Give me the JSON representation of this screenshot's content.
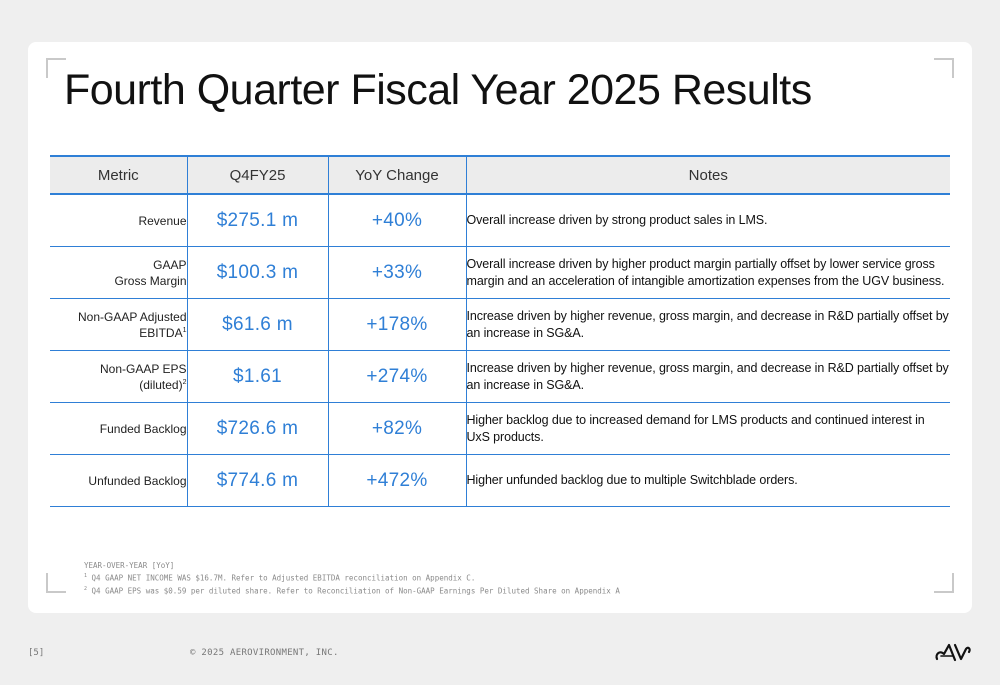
{
  "slide": {
    "title": "Fourth Quarter Fiscal Year 2025 Results",
    "page_number": "[5]",
    "copyright": "© 2025 AEROVIRONMENT, INC.",
    "logo_text": "AV",
    "accent_color": "#2f7fd6"
  },
  "table": {
    "headers": [
      "Metric",
      "Q4FY25",
      "YoY Change",
      "Notes"
    ],
    "rows": [
      {
        "metric_lines": [
          "Revenue"
        ],
        "metric_sup": "",
        "value": "$275.1 m",
        "yoy": "+40%",
        "note": "Overall increase driven by strong product sales in LMS."
      },
      {
        "metric_lines": [
          "GAAP",
          "Gross Margin"
        ],
        "metric_sup": "",
        "value": "$100.3 m",
        "yoy": "+33%",
        "note": "Overall increase driven by higher product margin partially offset by lower service gross margin and an acceleration of intangible amortization expenses from the UGV business."
      },
      {
        "metric_lines": [
          "Non-GAAP Adjusted",
          "EBITDA"
        ],
        "metric_sup": "1",
        "value": "$61.6 m",
        "yoy": "+178%",
        "note": "Increase driven by higher revenue, gross margin, and decrease in R&D partially offset by an increase in SG&A."
      },
      {
        "metric_lines": [
          "Non-GAAP EPS (diluted)"
        ],
        "metric_sup": "2",
        "value": "$1.61",
        "yoy": "+274%",
        "note": "Increase driven by higher revenue, gross margin, and decrease in R&D partially offset by an increase in SG&A."
      },
      {
        "metric_lines": [
          "Funded Backlog"
        ],
        "metric_sup": "",
        "value": "$726.6 m",
        "yoy": "+82%",
        "note": "Higher backlog due to increased demand for LMS products and continued interest in UxS products."
      },
      {
        "metric_lines": [
          "Unfunded Backlog"
        ],
        "metric_sup": "",
        "value": "$774.6 m",
        "yoy": "+472%",
        "note": "Higher unfunded backlog due to multiple Switchblade orders."
      }
    ]
  },
  "footnotes": {
    "line1": "YEAR-OVER-YEAR [YoY]",
    "line2_sup": "1",
    "line2": "Q4 GAAP NET INCOME WAS $16.7M. Refer to Adjusted EBITDA reconciliation on Appendix C.",
    "line3_sup": "2",
    "line3": "Q4 GAAP EPS was $0.59 per diluted share. Refer to Reconciliation of Non-GAAP Earnings Per Diluted Share on Appendix A"
  }
}
